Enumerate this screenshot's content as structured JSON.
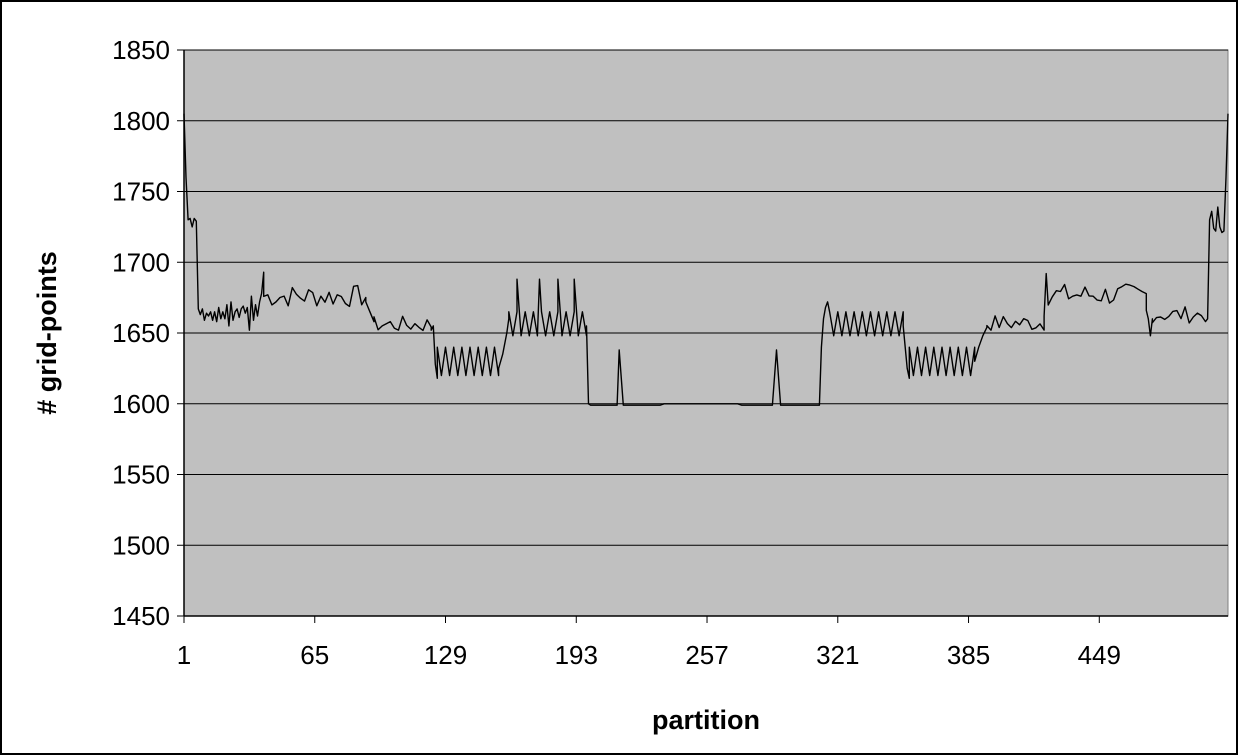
{
  "chart_data": {
    "type": "line",
    "title": "",
    "xlabel": "partition",
    "ylabel": "# grid-points",
    "ylim": [
      1450,
      1850
    ],
    "yticks": [
      1450,
      1500,
      1550,
      1600,
      1650,
      1700,
      1750,
      1800,
      1850
    ],
    "xlim": [
      1,
      512
    ],
    "xticks": [
      1,
      65,
      129,
      193,
      257,
      321,
      385,
      449
    ],
    "grid": "horizontal",
    "legend": "none",
    "colors": {
      "plot_area": "#c0c0c0",
      "line": "#000000",
      "gridline": "#000000"
    },
    "series": [
      {
        "segments": [
          {
            "type": "points",
            "x": [
              1,
              2,
              3,
              4,
              5,
              6,
              7,
              8,
              9,
              10,
              11,
              12,
              13,
              14,
              15,
              16,
              17,
              18,
              19,
              20,
              21,
              22,
              23,
              24,
              25,
              26,
              27,
              28,
              29,
              30,
              31,
              32,
              33,
              34,
              35,
              36,
              37,
              38,
              39,
              40
            ],
            "y": [
              1805,
              1760,
              1730,
              1731,
              1725,
              1731,
              1729,
              1667,
              1663,
              1667,
              1659,
              1664,
              1662,
              1665,
              1659,
              1665,
              1658,
              1668,
              1660,
              1665,
              1660,
              1670,
              1655,
              1672,
              1659,
              1665,
              1667,
              1661,
              1667,
              1669,
              1664,
              1668,
              1652,
              1676,
              1659,
              1670,
              1662,
              1672,
              1678,
              1693
            ]
          },
          {
            "type": "noise",
            "x_start": 40,
            "x_end": 90,
            "center": 1676,
            "amplitude": 8,
            "step": 2
          },
          {
            "type": "points",
            "x": [
              90,
              92,
              94
            ],
            "y": [
              1672,
              1665,
              1658
            ]
          },
          {
            "type": "noise",
            "x_start": 94,
            "x_end": 122,
            "center": 1656,
            "amplitude": 6,
            "step": 2
          },
          {
            "type": "points",
            "x": [
              122,
              123,
              124,
              125
            ],
            "y": [
              1652,
              1655,
              1628,
              1618
            ]
          },
          {
            "type": "alternate",
            "x_start": 125,
            "x_end": 155,
            "high": 1640,
            "low": 1620,
            "step": 2
          },
          {
            "type": "points",
            "x": [
              155,
              157,
              159,
              160
            ],
            "y": [
              1625,
              1635,
              1650,
              1660
            ]
          },
          {
            "type": "alternate",
            "x_start": 160,
            "x_end": 198,
            "high": 1665,
            "low": 1648,
            "step": 2
          },
          {
            "type": "points",
            "x": [
              164,
              175,
              184,
              192
            ],
            "y": [
              1688,
              1688,
              1688,
              1688
            ]
          },
          {
            "type": "points",
            "x": [
              198,
              199,
              200,
              213,
              214,
              216,
              233,
              234,
              236
            ],
            "y": [
              1655,
              1600,
              1599,
              1599,
              1638,
              1599,
              1599,
              1599,
              1600
            ]
          },
          {
            "type": "points",
            "x": [
              272,
              274,
              276,
              289,
              291,
              293,
              311,
              312,
              313
            ],
            "y": [
              1600,
              1599,
              1599,
              1599,
              1638,
              1599,
              1599,
              1599,
              1640
            ]
          },
          {
            "type": "points",
            "x": [
              314,
              315,
              316,
              317
            ],
            "y": [
              1660,
              1668,
              1672,
              1665
            ]
          },
          {
            "type": "alternate",
            "x_start": 317,
            "x_end": 353,
            "high": 1665,
            "low": 1648,
            "step": 2
          },
          {
            "type": "points",
            "x": [
              353,
              354,
              355,
              356
            ],
            "y": [
              1655,
              1640,
              1625,
              1618
            ]
          },
          {
            "type": "alternate",
            "x_start": 356,
            "x_end": 388,
            "high": 1640,
            "low": 1620,
            "step": 2
          },
          {
            "type": "points",
            "x": [
              388,
              390,
              392,
              394
            ],
            "y": [
              1630,
              1640,
              1648,
              1654
            ]
          },
          {
            "type": "noise",
            "x_start": 394,
            "x_end": 422,
            "center": 1657,
            "amplitude": 6,
            "step": 2
          },
          {
            "type": "points",
            "x": [
              422,
              423,
              424
            ],
            "y": [
              1662,
              1692,
              1670
            ]
          },
          {
            "type": "noise",
            "x_start": 424,
            "x_end": 472,
            "center": 1677,
            "amplitude": 8,
            "step": 2
          },
          {
            "type": "points",
            "x": [
              472,
              473,
              474,
              475
            ],
            "y": [
              1666,
              1660,
              1648,
              1660
            ]
          },
          {
            "type": "noise",
            "x_start": 475,
            "x_end": 502,
            "center": 1663,
            "amplitude": 6,
            "step": 2
          },
          {
            "type": "points",
            "x": [
              502,
              503,
              504,
              505,
              506,
              507,
              508,
              509,
              510,
              511,
              512
            ],
            "y": [
              1660,
              1730,
              1736,
              1724,
              1722,
              1739,
              1725,
              1721,
              1722,
              1760,
              1805
            ]
          }
        ]
      }
    ]
  }
}
